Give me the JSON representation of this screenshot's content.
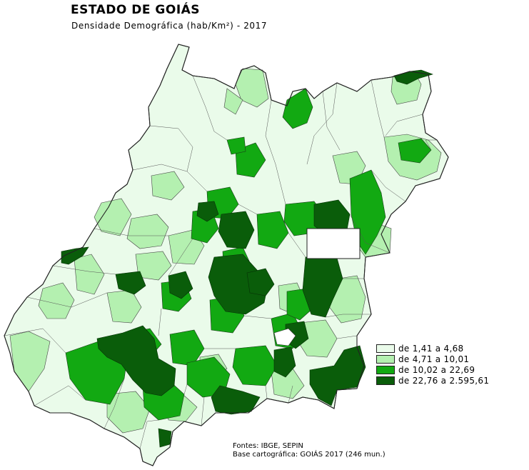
{
  "title": "ESTADO DE GOIÁS",
  "subtitle": "Densidade Demográfica (hab/Km²) - 2017",
  "legend": {
    "classes": [
      {
        "label": "de 1,41 a 4,68",
        "color": "#eafbea"
      },
      {
        "label": "de 4,71 a 10,01",
        "color": "#b4f0b0"
      },
      {
        "label": "de 10,02 a 22,69",
        "color": "#12a912"
      },
      {
        "label": "de 22,76 a 2.595,61",
        "color": "#0a5d0a"
      }
    ]
  },
  "source": {
    "line1": "Fontes: IBGE, SEPIN",
    "line2": "Base cartográfica: GOIÁS 2017 (246 mun.)"
  },
  "map": {
    "state": "Goiás",
    "enclave": "Distrito Federal",
    "classes_shown": [
      "de 1,41 a 4,68",
      "de 4,71 a 10,01",
      "de 10,02 a 22,69",
      "de 22,76 a 2.595,61"
    ]
  }
}
